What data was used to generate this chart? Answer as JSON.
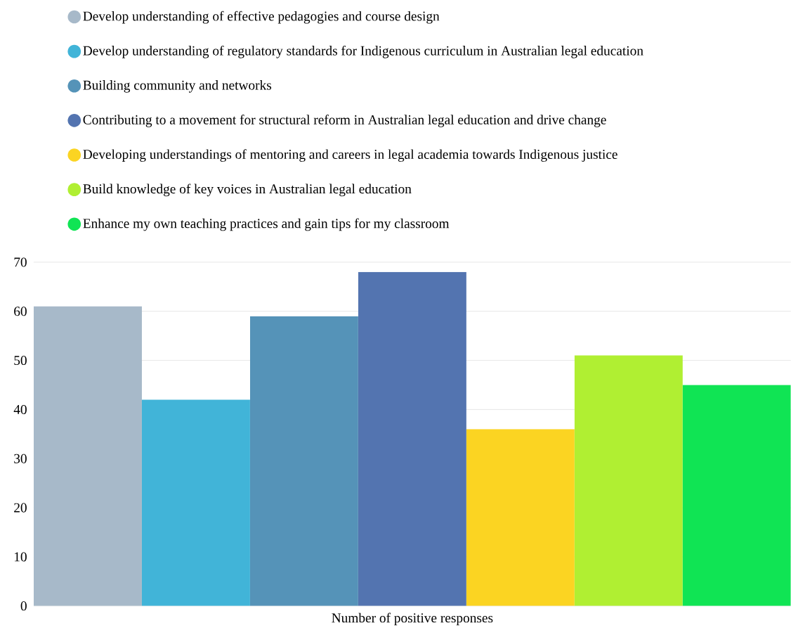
{
  "chart_data": {
    "type": "bar",
    "categories": [
      "Number of positive responses"
    ],
    "series": [
      {
        "name": "Develop understanding of effective pedagogies and course design",
        "color": "#a7b9c9",
        "values": [
          61
        ]
      },
      {
        "name": "Develop understanding of regulatory standards for Indigenous curriculum in Australian legal education",
        "color": "#41b4d8",
        "values": [
          42
        ]
      },
      {
        "name": "Building community and networks",
        "color": "#5593b8",
        "values": [
          59
        ]
      },
      {
        "name": "Contributing to a movement for structural reform in Australian legal education and drive change",
        "color": "#5374b0",
        "values": [
          68
        ]
      },
      {
        "name": "Developing understandings of mentoring and careers in legal academia towards Indigenous justice",
        "color": "#fbd422",
        "values": [
          36
        ]
      },
      {
        "name": "Build knowledge of key voices in Australian legal education",
        "color": "#b0ef32",
        "values": [
          51
        ]
      },
      {
        "name": "Enhance my own teaching practices and gain tips for my classroom",
        "color": "#10e454",
        "values": [
          45
        ]
      }
    ],
    "ylim": [
      0,
      70
    ],
    "yticks": [
      0,
      10,
      20,
      30,
      40,
      50,
      60,
      70
    ],
    "grid": "y",
    "legend": "top"
  }
}
